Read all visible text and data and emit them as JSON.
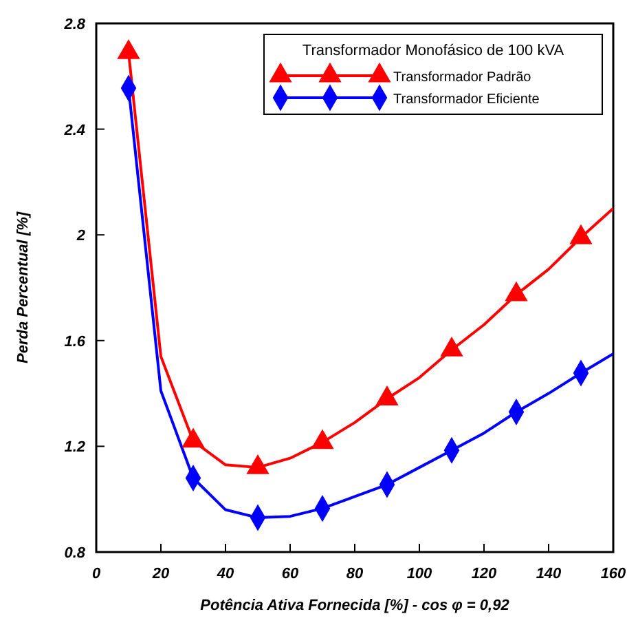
{
  "chart_data": {
    "type": "line",
    "xlabel": "Potência Ativa Fornecida [%] - cos φ = 0,92",
    "ylabel": "Perda Percentual [%]",
    "legend_title": "Transformador Monofásico de 100 kVA",
    "legend": "top right",
    "grid": false,
    "xlim": [
      0,
      160
    ],
    "xticks": [
      0,
      20,
      40,
      60,
      80,
      100,
      120,
      140,
      160
    ],
    "ylim": [
      0.8,
      2.8
    ],
    "yticks": [
      0.8,
      1.2,
      1.6,
      2,
      2.4,
      2.8
    ],
    "series": [
      {
        "color": "#ff0000",
        "marker": "none",
        "x": [
          10,
          20,
          30,
          40,
          50,
          60,
          70,
          80,
          90,
          100,
          110,
          120,
          130,
          140,
          150,
          160
        ],
        "values": [
          2.69,
          1.54,
          1.22,
          1.13,
          1.12,
          1.155,
          1.215,
          1.29,
          1.38,
          1.46,
          1.565,
          1.66,
          1.774,
          1.87,
          1.99,
          2.1
        ]
      },
      {
        "color": "#0000ff",
        "marker": "none",
        "x": [
          10,
          20,
          30,
          40,
          50,
          60,
          70,
          80,
          90,
          100,
          110,
          120,
          130,
          140,
          150,
          160
        ],
        "values": [
          2.555,
          1.41,
          1.08,
          0.96,
          0.93,
          0.935,
          0.965,
          1.01,
          1.055,
          1.12,
          1.185,
          1.25,
          1.33,
          1.4,
          1.477,
          1.55
        ]
      },
      {
        "type": "scatter",
        "name": "Transformador Padrão",
        "color": "#ff0000",
        "marker": "triangle",
        "x": [
          10,
          30,
          50,
          70,
          90,
          110,
          130,
          150
        ],
        "values": [
          2.69,
          1.22,
          1.12,
          1.215,
          1.38,
          1.565,
          1.774,
          1.99
        ]
      },
      {
        "type": "scatter",
        "name": "Transformador Eficiente",
        "color": "#0000ff",
        "marker": "diamond",
        "x": [
          10,
          30,
          50,
          70,
          90,
          110,
          130,
          150
        ],
        "values": [
          2.555,
          1.08,
          0.93,
          0.965,
          1.055,
          1.185,
          1.33,
          1.477
        ]
      }
    ]
  }
}
